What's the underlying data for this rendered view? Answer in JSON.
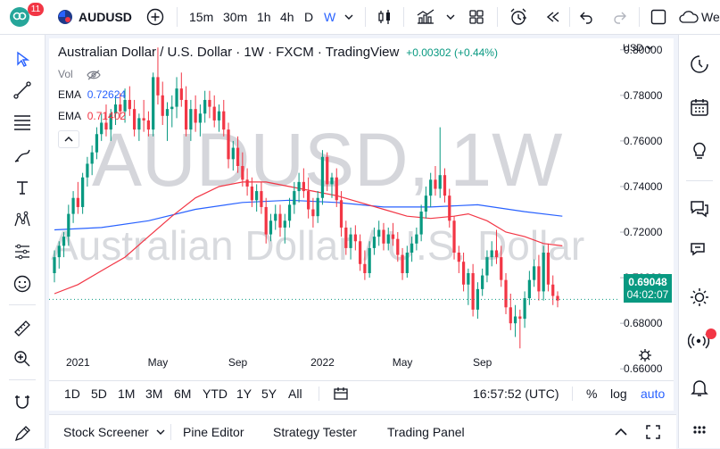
{
  "topbar": {
    "notification_count": "11",
    "symbol": "AUDUSD",
    "intervals": [
      "15m",
      "30m",
      "1h",
      "4h",
      "D",
      "W"
    ],
    "active_interval": "W",
    "publish_label": "We"
  },
  "chart": {
    "header": {
      "title": "Australian Dollar / U.S. Dollar · 1W · FXCM · TradingView",
      "change": "+0.00302 (+0.44%)"
    },
    "legend": {
      "vol_label": "Vol",
      "ema1_label": "EMA",
      "ema1_value": "0.72624",
      "ema2_label": "EMA",
      "ema2_value": "0.71402"
    },
    "watermark": {
      "symbol": "AUDUSD, 1W",
      "name": "Australian Dollar / U.S. Dollar"
    },
    "currency": "USD",
    "price_ticks": [
      "0.80000",
      "0.78000",
      "0.76000",
      "0.74000",
      "0.72000",
      "0.70000",
      "0.68000",
      "0.66000"
    ],
    "time_ticks": [
      "2021",
      "May",
      "Sep",
      "2022",
      "May",
      "Sep"
    ],
    "last_price": "0.69048",
    "countdown": "04:02:07",
    "colors": {
      "up": "#089981",
      "down": "#f23645",
      "ema_fast": "#f23645",
      "ema_slow": "#2962ff"
    }
  },
  "chart_data": {
    "type": "candlestick",
    "title": "Australian Dollar / U.S. Dollar · 1W · FXCM · TradingView",
    "ylim": [
      0.655,
      0.805
    ],
    "yticks": [
      0.66,
      0.68,
      0.7,
      0.72,
      0.74,
      0.76,
      0.78,
      0.8
    ],
    "xticks": [
      "2021",
      "May",
      "Sep",
      "2022",
      "May",
      "Sep"
    ],
    "last_price": 0.69048,
    "candles": [
      [
        0.702,
        0.712,
        0.698,
        0.709
      ],
      [
        0.709,
        0.716,
        0.704,
        0.714
      ],
      [
        0.714,
        0.72,
        0.709,
        0.718
      ],
      [
        0.718,
        0.732,
        0.714,
        0.728
      ],
      [
        0.728,
        0.738,
        0.724,
        0.735
      ],
      [
        0.735,
        0.742,
        0.728,
        0.731
      ],
      [
        0.731,
        0.746,
        0.728,
        0.744
      ],
      [
        0.744,
        0.753,
        0.74,
        0.75
      ],
      [
        0.75,
        0.758,
        0.745,
        0.755
      ],
      [
        0.755,
        0.766,
        0.752,
        0.763
      ],
      [
        0.763,
        0.772,
        0.76,
        0.768
      ],
      [
        0.768,
        0.776,
        0.762,
        0.765
      ],
      [
        0.765,
        0.774,
        0.76,
        0.772
      ],
      [
        0.772,
        0.78,
        0.767,
        0.776
      ],
      [
        0.776,
        0.781,
        0.77,
        0.773
      ],
      [
        0.773,
        0.783,
        0.768,
        0.778
      ],
      [
        0.778,
        0.784,
        0.771,
        0.774
      ],
      [
        0.774,
        0.778,
        0.762,
        0.765
      ],
      [
        0.765,
        0.772,
        0.76,
        0.77
      ],
      [
        0.77,
        0.778,
        0.764,
        0.769
      ],
      [
        0.769,
        0.773,
        0.762,
        0.765
      ],
      [
        0.765,
        0.79,
        0.762,
        0.788
      ],
      [
        0.788,
        0.801,
        0.776,
        0.78
      ],
      [
        0.78,
        0.786,
        0.767,
        0.771
      ],
      [
        0.771,
        0.777,
        0.76,
        0.774
      ],
      [
        0.774,
        0.78,
        0.766,
        0.775
      ],
      [
        0.775,
        0.788,
        0.77,
        0.783
      ],
      [
        0.783,
        0.79,
        0.775,
        0.778
      ],
      [
        0.778,
        0.784,
        0.762,
        0.765
      ],
      [
        0.765,
        0.778,
        0.76,
        0.774
      ],
      [
        0.774,
        0.78,
        0.764,
        0.768
      ],
      [
        0.768,
        0.776,
        0.762,
        0.772
      ],
      [
        0.772,
        0.782,
        0.768,
        0.778
      ],
      [
        0.778,
        0.782,
        0.77,
        0.775
      ],
      [
        0.775,
        0.78,
        0.766,
        0.769
      ],
      [
        0.769,
        0.776,
        0.764,
        0.773
      ],
      [
        0.773,
        0.778,
        0.762,
        0.765
      ],
      [
        0.765,
        0.768,
        0.748,
        0.752
      ],
      [
        0.752,
        0.76,
        0.747,
        0.757
      ],
      [
        0.757,
        0.762,
        0.746,
        0.749
      ],
      [
        0.749,
        0.755,
        0.74,
        0.743
      ],
      [
        0.743,
        0.748,
        0.736,
        0.74
      ],
      [
        0.74,
        0.744,
        0.731,
        0.734
      ],
      [
        0.734,
        0.741,
        0.729,
        0.738
      ],
      [
        0.738,
        0.742,
        0.728,
        0.731
      ],
      [
        0.731,
        0.735,
        0.715,
        0.719
      ],
      [
        0.719,
        0.728,
        0.716,
        0.725
      ],
      [
        0.725,
        0.732,
        0.721,
        0.728
      ],
      [
        0.728,
        0.732,
        0.718,
        0.722
      ],
      [
        0.722,
        0.728,
        0.715,
        0.725
      ],
      [
        0.725,
        0.735,
        0.722,
        0.732
      ],
      [
        0.732,
        0.742,
        0.728,
        0.738
      ],
      [
        0.738,
        0.746,
        0.733,
        0.742
      ],
      [
        0.742,
        0.748,
        0.735,
        0.738
      ],
      [
        0.738,
        0.744,
        0.726,
        0.73
      ],
      [
        0.73,
        0.735,
        0.722,
        0.727
      ],
      [
        0.727,
        0.738,
        0.724,
        0.735
      ],
      [
        0.735,
        0.756,
        0.732,
        0.753
      ],
      [
        0.753,
        0.755,
        0.738,
        0.741
      ],
      [
        0.741,
        0.746,
        0.735,
        0.744
      ],
      [
        0.744,
        0.748,
        0.731,
        0.734
      ],
      [
        0.734,
        0.738,
        0.718,
        0.722
      ],
      [
        0.722,
        0.725,
        0.71,
        0.713
      ],
      [
        0.713,
        0.722,
        0.708,
        0.719
      ],
      [
        0.719,
        0.723,
        0.712,
        0.716
      ],
      [
        0.716,
        0.719,
        0.703,
        0.706
      ],
      [
        0.706,
        0.712,
        0.699,
        0.702
      ],
      [
        0.702,
        0.716,
        0.7,
        0.713
      ],
      [
        0.713,
        0.722,
        0.71,
        0.718
      ],
      [
        0.718,
        0.725,
        0.714,
        0.721
      ],
      [
        0.721,
        0.724,
        0.712,
        0.715
      ],
      [
        0.715,
        0.722,
        0.712,
        0.719
      ],
      [
        0.719,
        0.724,
        0.714,
        0.717
      ],
      [
        0.717,
        0.72,
        0.707,
        0.71
      ],
      [
        0.71,
        0.713,
        0.699,
        0.702
      ],
      [
        0.702,
        0.714,
        0.7,
        0.711
      ],
      [
        0.711,
        0.718,
        0.707,
        0.715
      ],
      [
        0.715,
        0.722,
        0.712,
        0.719
      ],
      [
        0.719,
        0.732,
        0.716,
        0.729
      ],
      [
        0.729,
        0.74,
        0.726,
        0.736
      ],
      [
        0.736,
        0.746,
        0.731,
        0.743
      ],
      [
        0.743,
        0.749,
        0.736,
        0.739
      ],
      [
        0.739,
        0.766,
        0.735,
        0.745
      ],
      [
        0.745,
        0.748,
        0.733,
        0.736
      ],
      [
        0.736,
        0.739,
        0.722,
        0.725
      ],
      [
        0.725,
        0.727,
        0.708,
        0.711
      ],
      [
        0.711,
        0.714,
        0.702,
        0.707
      ],
      [
        0.707,
        0.711,
        0.694,
        0.697
      ],
      [
        0.697,
        0.704,
        0.688,
        0.702
      ],
      [
        0.702,
        0.706,
        0.683,
        0.686
      ],
      [
        0.686,
        0.698,
        0.682,
        0.695
      ],
      [
        0.695,
        0.704,
        0.692,
        0.701
      ],
      [
        0.701,
        0.712,
        0.698,
        0.709
      ],
      [
        0.709,
        0.716,
        0.705,
        0.712
      ],
      [
        0.712,
        0.721,
        0.706,
        0.709
      ],
      [
        0.709,
        0.714,
        0.696,
        0.699
      ],
      [
        0.699,
        0.702,
        0.684,
        0.687
      ],
      [
        0.687,
        0.693,
        0.677,
        0.68
      ],
      [
        0.68,
        0.688,
        0.674,
        0.683
      ],
      [
        0.683,
        0.686,
        0.669,
        0.682
      ],
      [
        0.682,
        0.694,
        0.678,
        0.691
      ],
      [
        0.691,
        0.703,
        0.688,
        0.699
      ],
      [
        0.699,
        0.708,
        0.696,
        0.705
      ],
      [
        0.705,
        0.71,
        0.69,
        0.694
      ],
      [
        0.694,
        0.714,
        0.69,
        0.711
      ],
      [
        0.711,
        0.715,
        0.694,
        0.697
      ],
      [
        0.697,
        0.701,
        0.688,
        0.692
      ],
      [
        0.692,
        0.694,
        0.687,
        0.69
      ]
    ],
    "series": [
      {
        "name": "EMA",
        "value": 0.72624,
        "points": [
          [
            0,
            0.721
          ],
          [
            10,
            0.722
          ],
          [
            20,
            0.725
          ],
          [
            30,
            0.73
          ],
          [
            40,
            0.733
          ],
          [
            50,
            0.734
          ],
          [
            60,
            0.733
          ],
          [
            70,
            0.731
          ],
          [
            80,
            0.731
          ],
          [
            90,
            0.732
          ],
          [
            100,
            0.729
          ],
          [
            108,
            0.727
          ]
        ]
      },
      {
        "name": "EMA",
        "value": 0.71402,
        "points": [
          [
            0,
            0.693
          ],
          [
            5,
            0.697
          ],
          [
            10,
            0.703
          ],
          [
            15,
            0.709
          ],
          [
            20,
            0.718
          ],
          [
            25,
            0.727
          ],
          [
            30,
            0.735
          ],
          [
            35,
            0.74
          ],
          [
            40,
            0.742
          ],
          [
            45,
            0.742
          ],
          [
            50,
            0.74
          ],
          [
            55,
            0.738
          ],
          [
            60,
            0.736
          ],
          [
            65,
            0.733
          ],
          [
            70,
            0.73
          ],
          [
            75,
            0.727
          ],
          [
            80,
            0.726
          ],
          [
            85,
            0.727
          ],
          [
            88,
            0.728
          ],
          [
            92,
            0.725
          ],
          [
            96,
            0.72
          ],
          [
            100,
            0.718
          ],
          [
            104,
            0.715
          ],
          [
            108,
            0.714
          ]
        ]
      }
    ]
  },
  "bottom_toolbar": {
    "ranges": [
      "1D",
      "5D",
      "1M",
      "3M",
      "6M",
      "YTD",
      "1Y",
      "5Y",
      "All"
    ],
    "time": "16:57:52 (UTC)",
    "percent": "%",
    "log": "log",
    "auto": "auto"
  },
  "bottom_panel": {
    "tabs": [
      "Stock Screener",
      "Pine Editor",
      "Strategy Tester",
      "Trading Panel"
    ]
  }
}
